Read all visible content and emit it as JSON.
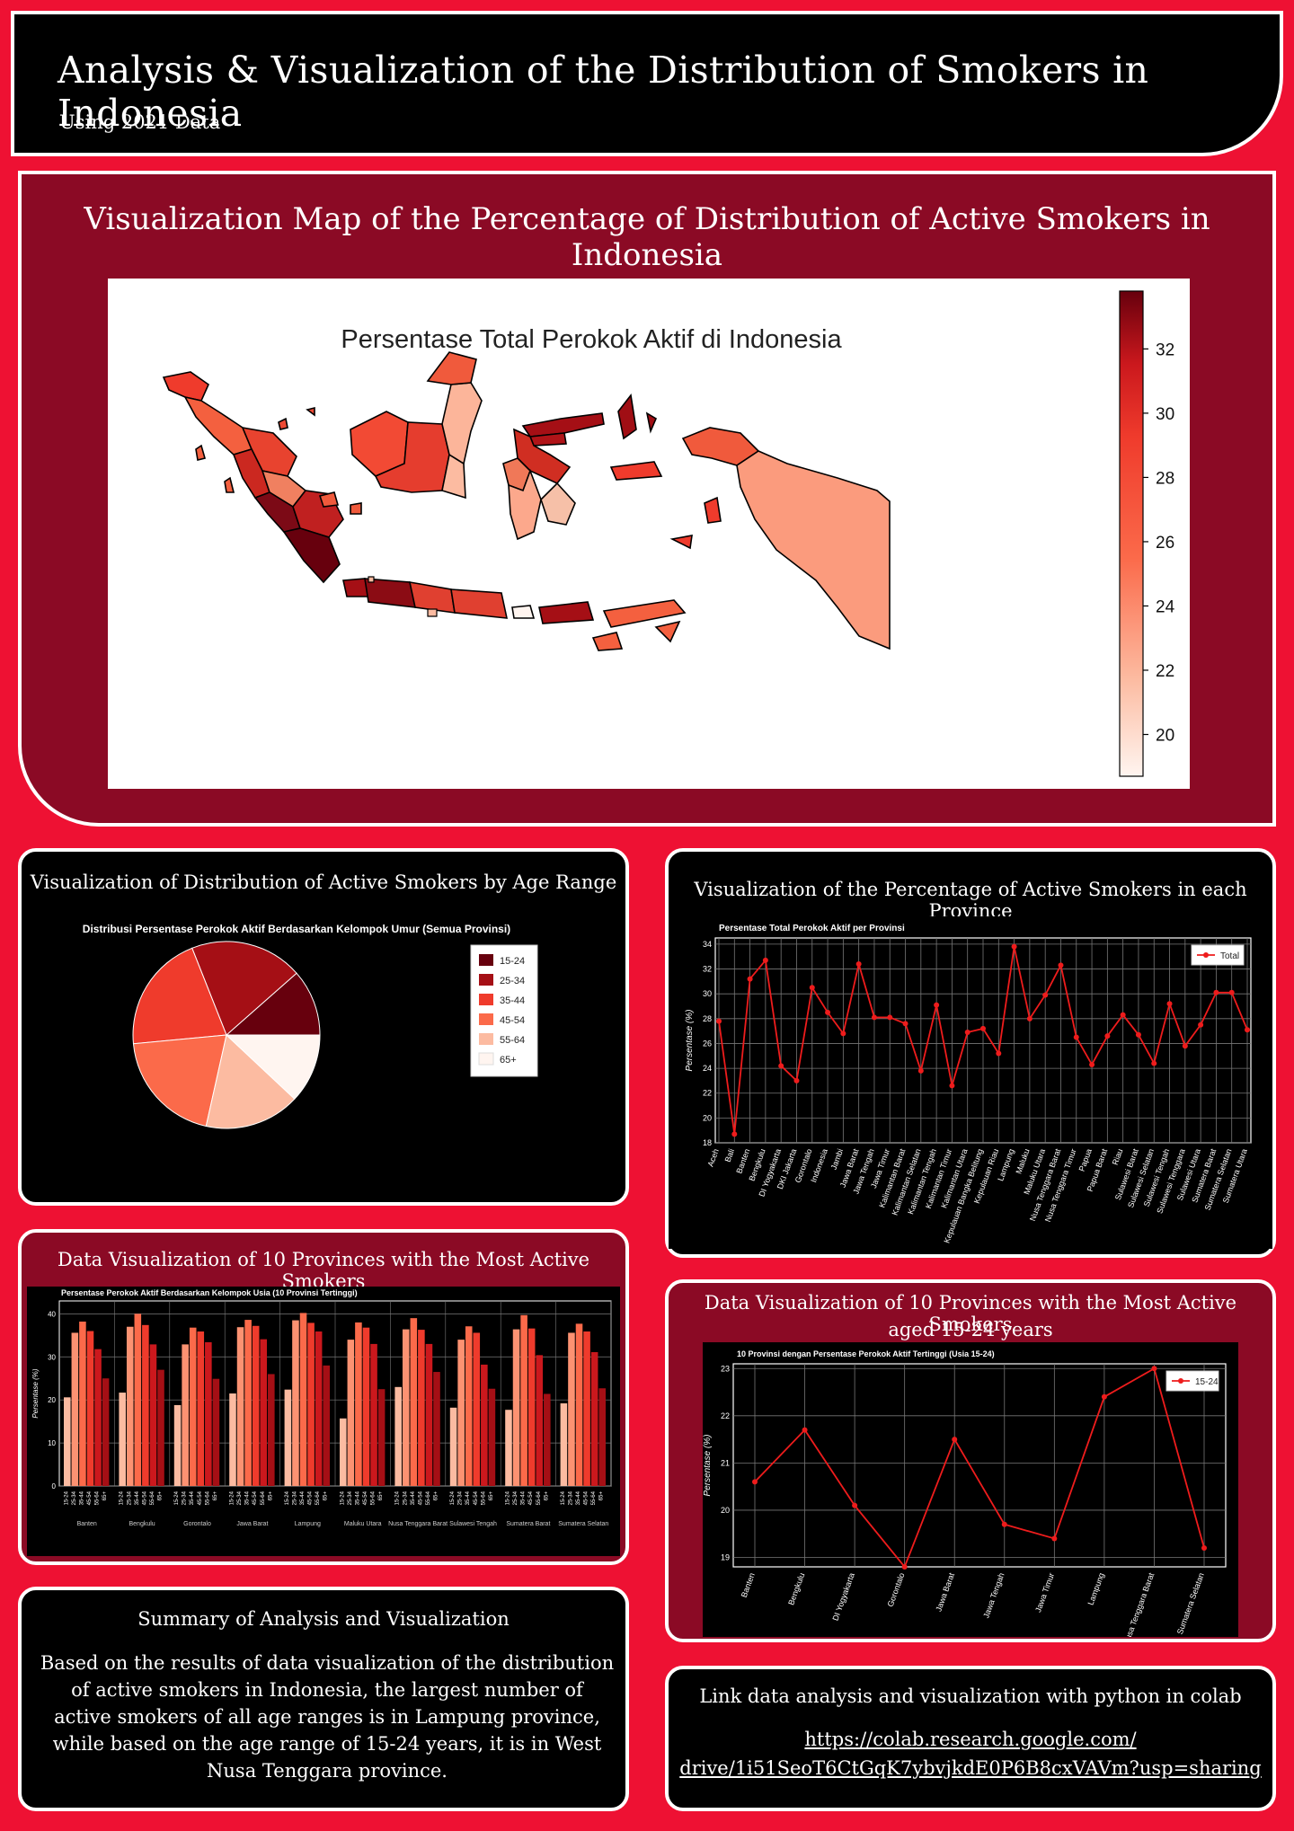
{
  "header": {
    "title": "Analysis & Visualization of the Distribution of Smokers in Indonesia",
    "subtitle": "Using 2021 Data"
  },
  "map_panel": {
    "title": "Visualization Map of the Percentage of Distribution of Active Smokers in Indonesia",
    "map_title": "Persentase Total Perokok Aktif di Indonesia",
    "colorbar_ticks": [
      "20",
      "22",
      "24",
      "26",
      "28",
      "30",
      "32"
    ],
    "colorbar_range": [
      18.7,
      33.8
    ]
  },
  "pie_panel": {
    "title": "Visualization of Distribution of Active Smokers by Age Range"
  },
  "line_panel": {
    "title": "Visualization of the Percentage of Active Smokers in each Province"
  },
  "bar_panel": {
    "title": "Data Visualization of 10 Provinces with the Most Active Smokers"
  },
  "line2_panel": {
    "title_line1": "Data Visualization of 10 Provinces with the Most Active Smokers",
    "title_line2": "aged 15-24 years"
  },
  "summary": {
    "title": "Summary of Analysis and Visualization",
    "body": "Based on the results of data visualization of the distribution of active smokers in Indonesia, the largest number of active smokers of all age ranges is in Lampung province, while based on the age range of 15-24 years, it is in West Nusa Tenggara province."
  },
  "link_panel": {
    "title": "Link data analysis and visualization with python in colab",
    "url_line1": "https://colab.research.google.com/",
    "url_line2": "drive/1i51SeoT6CtGqK7ybvjkdE0P6B8cxVAVm?usp=sharing"
  },
  "colors": {
    "background": "#ee1133",
    "panel_dark_red": "#8b0a25",
    "line_red": "#ee1c1c"
  },
  "chart_data": [
    {
      "type": "pie",
      "title": "Distribusi Persentase Perokok Aktif Berdasarkan Kelompok Umur (Semua Provinsi)",
      "categories": [
        "15-24",
        "25-34",
        "35-44",
        "45-54",
        "55-64",
        "65+"
      ],
      "values": [
        11.5,
        19.5,
        20.5,
        20.0,
        16.5,
        12.0
      ],
      "colors": [
        "#67000d",
        "#a50f15",
        "#ef3b2c",
        "#fb6a4a",
        "#fcbba1",
        "#fff5f0"
      ],
      "legend": "right"
    },
    {
      "type": "line",
      "title": "Persentase Total Perokok Aktif per Provinsi",
      "ylabel": "Persentase (%)",
      "ylim": [
        18,
        34.5
      ],
      "yticks": [
        18,
        20,
        22,
        24,
        26,
        28,
        30,
        32,
        34
      ],
      "grid": true,
      "legend": "top-right",
      "series": [
        {
          "name": "Total",
          "values": [
            27.8,
            18.7,
            31.2,
            32.7,
            24.2,
            23.0,
            30.5,
            28.5,
            26.8,
            32.4,
            28.1,
            28.1,
            27.6,
            23.8,
            29.1,
            22.6,
            26.9,
            27.2,
            25.2,
            33.8,
            28.0,
            29.9,
            32.3,
            26.5,
            24.3,
            26.6,
            28.3,
            26.7,
            24.4,
            29.2,
            25.8,
            27.5,
            30.1,
            30.1,
            27.1
          ]
        }
      ],
      "categories": [
        "Aceh",
        "Bali",
        "Banten",
        "Bengkulu",
        "DI Yogyakarta",
        "DKI Jakarta",
        "Gorontalo",
        "Indonesia",
        "Jambi",
        "Jawa Barat",
        "Jawa Tengah",
        "Jawa Timur",
        "Kalimantan Barat",
        "Kalimantan Selatan",
        "Kalimantan Tengah",
        "Kalimantan Timur",
        "Kalimantan Utara",
        "Kepulauan Bangka Belitung",
        "Kepulauan Riau",
        "Lampung",
        "Maluku",
        "Maluku Utara",
        "Nusa Tenggara Barat",
        "Nusa Tenggara Timur",
        "Papua",
        "Papua Barat",
        "Riau",
        "Sulawesi Barat",
        "Sulawesi Selatan",
        "Sulawesi Tengah",
        "Sulawesi Tenggara",
        "Sulawesi Utara",
        "Sumatera Barat",
        "Sumatera Selatan",
        "Sumatera Utara"
      ]
    },
    {
      "type": "bar",
      "title": "Persentase Perokok Aktif Berdasarkan Kelompok Usia (10 Provinsi Tertinggi)",
      "ylabel": "Persentase (%)",
      "ylim": [
        0,
        43
      ],
      "yticks": [
        0,
        10,
        20,
        30,
        40
      ],
      "grid": true,
      "age_groups": [
        "15-24",
        "25-34",
        "35-44",
        "45-54",
        "55-64",
        "65+"
      ],
      "age_colors": [
        "#fcbba1",
        "#fc9272",
        "#fb6a4a",
        "#ef3b2c",
        "#cb181d",
        "#a50f15"
      ],
      "categories": [
        "Banten",
        "Bengkulu",
        "Gorontalo",
        "Jawa Barat",
        "Lampung",
        "Maluku Utara",
        "Nusa Tenggara Barat",
        "Sulawesi Tengah",
        "Sumatera Barat",
        "Sumatera Selatan"
      ],
      "values": [
        [
          20.6,
          35.6,
          38.2,
          36.0,
          31.8,
          25.0
        ],
        [
          21.7,
          37.0,
          40.0,
          37.4,
          32.9,
          27.0
        ],
        [
          18.8,
          32.9,
          36.8,
          35.9,
          33.4,
          24.9
        ],
        [
          21.5,
          36.9,
          38.6,
          37.2,
          34.1,
          26.0
        ],
        [
          22.4,
          38.5,
          40.2,
          37.9,
          35.9,
          28.0
        ],
        [
          15.7,
          34.0,
          38.0,
          36.8,
          33.0,
          22.5
        ],
        [
          23.0,
          36.4,
          39.0,
          36.3,
          33.0,
          26.5
        ],
        [
          18.2,
          34.0,
          37.1,
          35.6,
          28.2,
          22.6
        ],
        [
          17.7,
          36.4,
          39.7,
          36.6,
          30.4,
          21.4
        ],
        [
          19.2,
          35.6,
          37.7,
          35.9,
          31.1,
          22.7
        ]
      ]
    },
    {
      "type": "line",
      "title": "10 Provinsi dengan Persentase Perokok Aktif Tertinggi (Usia 15-24)",
      "ylabel": "Persentase (%)",
      "ylim": [
        18.8,
        23.1
      ],
      "yticks": [
        19,
        20,
        21,
        22,
        23
      ],
      "grid": true,
      "legend": "top-right",
      "categories": [
        "Banten",
        "Bengkulu",
        "DI Yogyakarta",
        "Gorontalo",
        "Jawa Barat",
        "Jawa Tengah",
        "Jawa Timur",
        "Lampung",
        "Nusa Tenggara Barat",
        "Sumatera Selatan"
      ],
      "series": [
        {
          "name": "15-24",
          "values": [
            20.6,
            21.7,
            20.1,
            18.8,
            21.5,
            19.7,
            19.4,
            22.4,
            23.0,
            19.2
          ]
        }
      ]
    }
  ]
}
